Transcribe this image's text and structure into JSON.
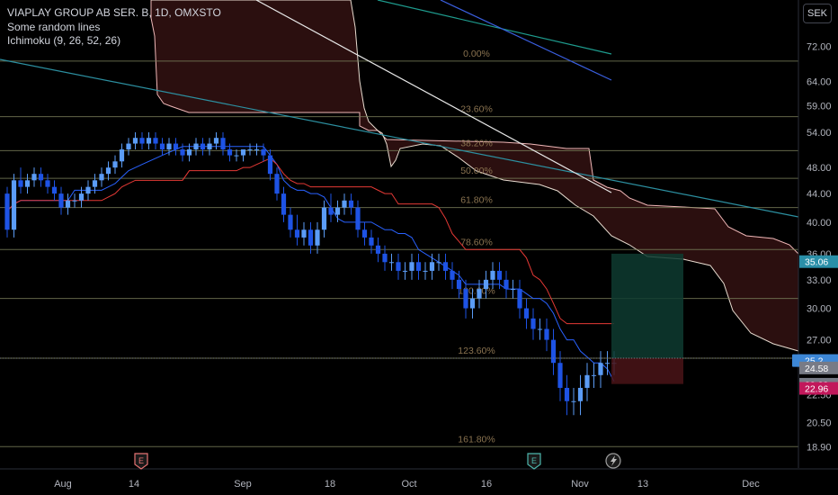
{
  "header": {
    "title": "VIAPLAY GROUP AB SER. B, 1D, OMXSTO",
    "indicators": [
      "Some random lines",
      "Ichimoku (9, 26, 52, 26)"
    ]
  },
  "currency": "SEK",
  "chart_data": {
    "type": "candlestick",
    "yscale": "log",
    "ylim": [
      17.6,
      82
    ],
    "y_ticks": [
      "72.00",
      "64.00",
      "59.00",
      "54.00",
      "48.00",
      "44.00",
      "40.00",
      "36.00",
      "33.00",
      "30.00",
      "27.00",
      "24.50",
      "22.50",
      "20.50",
      "18.90"
    ],
    "x_ticks": [
      "Aug",
      "14",
      "Sep",
      "18",
      "Oct",
      "16",
      "Nov",
      "13",
      "Dec"
    ],
    "fib_levels": [
      {
        "label": "0.00%",
        "value": 68.5
      },
      {
        "label": "23.60%",
        "value": 56.9
      },
      {
        "label": "38.20%",
        "value": 50.8
      },
      {
        "label": "50.00%",
        "value": 46.3
      },
      {
        "label": "61.80%",
        "value": 42.0
      },
      {
        "label": "78.60%",
        "value": 36.5
      },
      {
        "label": "100.00%",
        "value": 31.0
      },
      {
        "label": "123.60%",
        "value": 25.4
      },
      {
        "label": "161.80%",
        "value": 18.9
      }
    ],
    "price_badges": [
      {
        "value": "35.06",
        "color": "#2a8fa8"
      },
      {
        "value": "25.2",
        "color": "#3d87d6"
      },
      {
        "value": "24.58",
        "color": "#787b86"
      },
      {
        "value": "23.28",
        "color": "#787b86"
      },
      {
        "value": "22.96",
        "color": "#c2185b"
      }
    ],
    "position_tool": {
      "entry": 25.4,
      "target": 36.0,
      "stop": 23.3
    },
    "candles": [
      [
        44,
        45,
        38,
        39
      ],
      [
        39,
        47,
        38,
        46
      ],
      [
        46,
        48,
        44,
        45
      ],
      [
        45,
        47,
        44,
        46
      ],
      [
        46,
        48,
        45,
        47
      ],
      [
        47,
        48,
        45,
        46
      ],
      [
        46,
        47,
        44,
        45
      ],
      [
        45,
        46,
        43,
        44
      ],
      [
        44,
        45,
        41,
        42
      ],
      [
        42,
        44,
        41,
        43
      ],
      [
        43,
        44,
        42,
        43
      ],
      [
        43,
        45,
        42,
        44
      ],
      [
        44,
        46,
        43,
        45
      ],
      [
        45,
        47,
        44,
        46
      ],
      [
        46,
        48,
        45,
        47
      ],
      [
        47,
        49,
        46,
        48
      ],
      [
        48,
        50,
        47,
        49
      ],
      [
        49,
        52,
        48,
        51
      ],
      [
        51,
        53,
        50,
        52
      ],
      [
        52,
        54,
        51,
        53
      ],
      [
        53,
        54,
        51,
        52
      ],
      [
        52,
        54,
        51,
        53
      ],
      [
        53,
        54,
        51,
        52
      ],
      [
        52,
        53,
        50,
        51
      ],
      [
        51,
        53,
        50,
        52
      ],
      [
        52,
        53,
        50,
        51
      ],
      [
        51,
        52,
        49,
        50
      ],
      [
        50,
        52,
        49,
        51
      ],
      [
        51,
        53,
        50,
        52
      ],
      [
        52,
        53,
        50,
        51
      ],
      [
        51,
        53,
        50,
        52
      ],
      [
        52,
        54,
        51,
        53
      ],
      [
        53,
        54,
        50,
        51
      ],
      [
        51,
        52,
        49,
        50
      ],
      [
        50,
        51,
        49,
        50
      ],
      [
        50,
        51,
        49,
        51
      ],
      [
        51,
        52,
        50,
        51
      ],
      [
        51,
        52,
        50,
        51
      ],
      [
        51,
        52,
        49,
        50
      ],
      [
        50,
        51,
        46,
        47
      ],
      [
        47,
        48,
        43,
        44
      ],
      [
        44,
        45,
        40,
        41
      ],
      [
        41,
        42,
        38,
        39
      ],
      [
        39,
        41,
        37,
        38
      ],
      [
        38,
        40,
        37,
        39
      ],
      [
        39,
        40,
        36,
        37
      ],
      [
        37,
        40,
        36,
        39
      ],
      [
        39,
        43,
        38,
        42
      ],
      [
        42,
        44,
        40,
        41
      ],
      [
        41,
        43,
        40,
        42
      ],
      [
        42,
        44,
        41,
        43
      ],
      [
        43,
        44,
        41,
        42
      ],
      [
        42,
        43,
        38,
        39
      ],
      [
        39,
        40,
        37,
        38
      ],
      [
        38,
        39,
        36,
        37
      ],
      [
        37,
        38,
        35,
        36
      ],
      [
        36,
        37,
        34,
        35
      ],
      [
        35,
        36,
        34,
        35
      ],
      [
        35,
        36,
        33,
        34
      ],
      [
        34,
        35,
        33,
        34
      ],
      [
        34,
        36,
        33,
        35
      ],
      [
        35,
        36,
        33,
        34
      ],
      [
        34,
        35,
        33,
        34
      ],
      [
        34,
        36,
        33,
        35
      ],
      [
        35,
        36,
        34,
        35
      ],
      [
        35,
        36,
        33,
        34
      ],
      [
        34,
        35,
        32,
        33
      ],
      [
        33,
        34,
        31,
        32
      ],
      [
        32,
        33,
        29,
        30
      ],
      [
        30,
        32,
        29,
        31
      ],
      [
        31,
        33,
        30,
        32
      ],
      [
        32,
        34,
        31,
        33
      ],
      [
        33,
        35,
        32,
        34
      ],
      [
        34,
        35,
        32,
        33
      ],
      [
        33,
        34,
        31,
        32
      ],
      [
        32,
        33,
        31,
        32
      ],
      [
        32,
        33,
        29,
        30
      ],
      [
        30,
        31,
        28,
        29
      ],
      [
        29,
        30,
        27,
        28
      ],
      [
        28,
        29,
        27,
        28
      ],
      [
        28,
        29,
        26,
        27
      ],
      [
        27,
        28,
        24,
        25
      ],
      [
        25,
        26,
        22,
        23
      ],
      [
        23,
        24,
        21,
        22
      ],
      [
        22,
        23,
        21,
        22
      ],
      [
        22,
        24,
        21,
        23
      ],
      [
        23,
        25,
        22,
        24
      ],
      [
        24,
        25,
        23,
        24
      ],
      [
        24,
        26,
        23,
        25
      ],
      [
        25,
        26,
        24,
        25
      ],
      [
        25,
        26,
        24,
        25
      ]
    ]
  }
}
